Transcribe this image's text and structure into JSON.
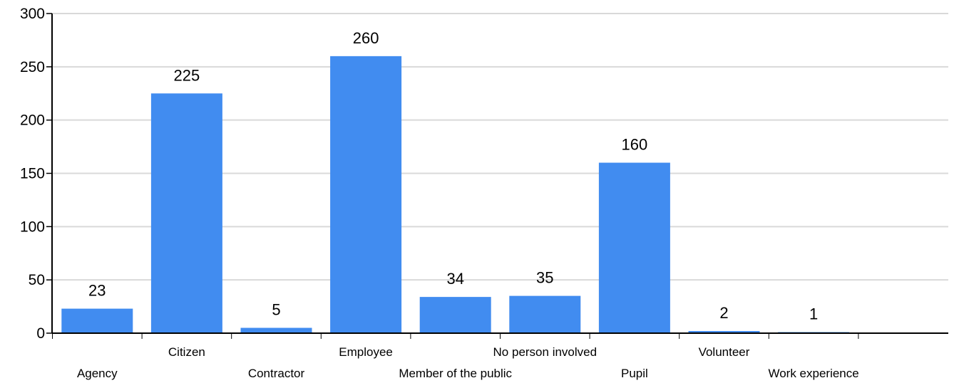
{
  "chart_data": {
    "type": "bar",
    "title": "",
    "xlabel": "",
    "ylabel": "",
    "categories": [
      "Agency",
      "Citizen",
      "Contractor",
      "Employee",
      "Member of the public",
      "No person involved",
      "Pupil",
      "Volunteer",
      "Work experience"
    ],
    "values": [
      23,
      225,
      5,
      260,
      34,
      35,
      160,
      2,
      1
    ],
    "data_labels": [
      "23",
      "225",
      "5",
      "260",
      "34",
      "35",
      "160",
      "2",
      "1"
    ],
    "ylim": [
      0,
      300
    ],
    "yticks": [
      0,
      50,
      100,
      150,
      200,
      250,
      300
    ],
    "grid": true,
    "legend": "none",
    "bar_color": "#418cf0",
    "grid_color": "#d9d9d9",
    "axis_color": "#000000"
  }
}
